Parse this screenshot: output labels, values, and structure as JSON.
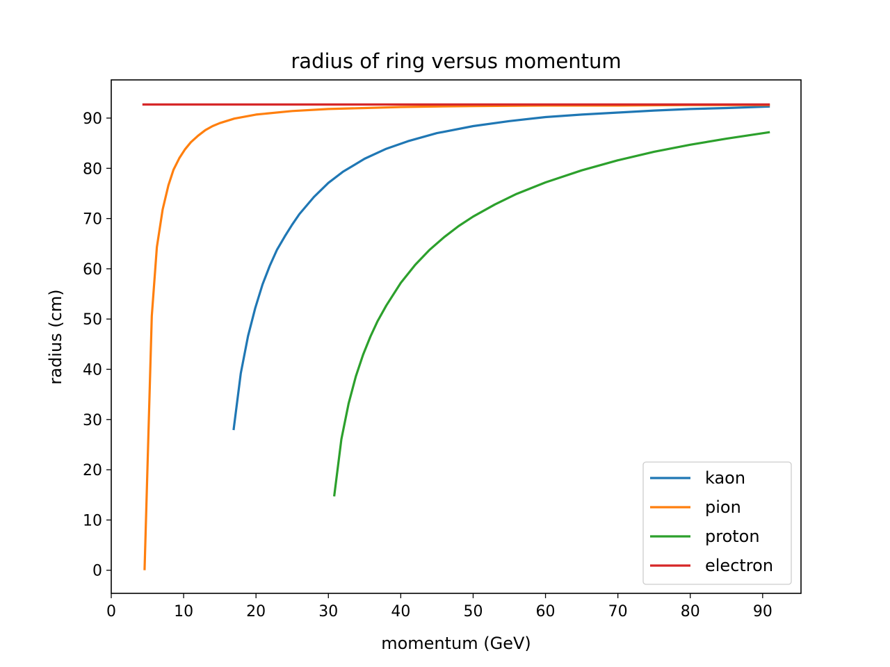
{
  "chart_data": {
    "type": "line",
    "title": "radius of ring versus momentum",
    "xlabel": "momentum (GeV)",
    "ylabel": "radius (cm)",
    "xlim": [
      0,
      95.3
    ],
    "ylim": [
      -4.6,
      97.6
    ],
    "xticks": [
      0,
      10,
      20,
      30,
      40,
      50,
      60,
      70,
      80,
      90
    ],
    "yticks": [
      0,
      10,
      20,
      30,
      40,
      50,
      60,
      70,
      80,
      90
    ],
    "grid": false,
    "legend_position": "lower right",
    "series": [
      {
        "name": "kaon",
        "color": "#1f77b4",
        "x": [
          16.9,
          17.9,
          18.9,
          19.9,
          20.9,
          21.9,
          22.9,
          24,
          25,
          26,
          28,
          30,
          32,
          35,
          38,
          41,
          45,
          50,
          55,
          60,
          65,
          70,
          75,
          80,
          85,
          91
        ],
        "y": [
          27.9,
          39.2,
          46.6,
          52.2,
          56.9,
          60.6,
          63.8,
          66.5,
          68.8,
          70.9,
          74.3,
          77.1,
          79.3,
          81.9,
          83.9,
          85.4,
          87.0,
          88.4,
          89.4,
          90.2,
          90.7,
          91.1,
          91.5,
          91.8,
          92.0,
          92.3
        ]
      },
      {
        "name": "pion",
        "color": "#ff7f0e",
        "x": [
          4.6,
          5.6,
          6.3,
          7.1,
          7.9,
          8.6,
          9.4,
          10.2,
          11,
          12,
          13,
          14,
          15,
          17,
          20,
          25,
          30,
          35,
          40,
          50,
          60,
          70,
          80,
          91
        ],
        "y": [
          0,
          50.6,
          64.3,
          71.8,
          76.6,
          79.7,
          82.0,
          83.8,
          85.2,
          86.5,
          87.6,
          88.4,
          89.0,
          89.9,
          90.7,
          91.4,
          91.8,
          92.0,
          92.2,
          92.4,
          92.5,
          92.5,
          92.6,
          92.6
        ]
      },
      {
        "name": "proton",
        "color": "#2ca02c",
        "x": [
          30.8,
          31.8,
          32.8,
          33.8,
          34.8,
          35.8,
          36.8,
          38,
          40,
          42,
          44,
          46,
          48,
          50,
          53,
          56,
          60,
          65,
          70,
          75,
          80,
          85,
          91
        ],
        "y": [
          14.7,
          26.1,
          33.2,
          38.6,
          42.9,
          46.5,
          49.6,
          52.7,
          57.2,
          60.8,
          63.8,
          66.3,
          68.5,
          70.4,
          72.8,
          74.9,
          77.2,
          79.6,
          81.6,
          83.3,
          84.7,
          85.9,
          87.2
        ]
      },
      {
        "name": "electron",
        "color": "#d62728",
        "x": [
          4.3,
          91
        ],
        "y": [
          92.7,
          92.7
        ]
      }
    ]
  }
}
